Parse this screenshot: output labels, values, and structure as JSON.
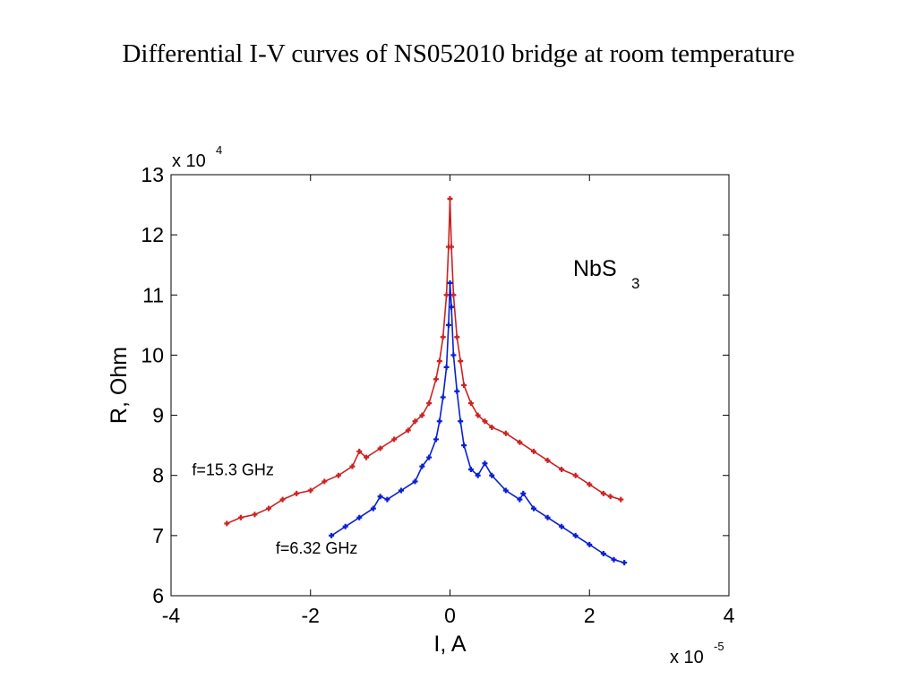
{
  "slide": {
    "title": "Differential I-V curves of NS052010 bridge at room temperature"
  },
  "colors": {
    "series1": "#cc2222",
    "series2": "#0a1fd2",
    "axis": "#000000",
    "background": "#ffffff"
  },
  "chart_data": {
    "type": "line",
    "xlabel": "I, A",
    "ylabel": "R, Ohm",
    "x_multiplier": "x 10",
    "x_multiplier_exp": "-5",
    "y_multiplier": "x 10",
    "y_multiplier_exp": "4",
    "xlim": [
      -4,
      4
    ],
    "ylim": [
      6,
      13
    ],
    "xticks": [
      "-4",
      "-2",
      "0",
      "2",
      "4"
    ],
    "yticks": [
      "6",
      "7",
      "8",
      "9",
      "10",
      "11",
      "12",
      "13"
    ],
    "grid": false,
    "annotation_main": "NbS",
    "annotation_main_sub": "3",
    "series": [
      {
        "name": "f=15.3 GHz",
        "color": "#cc2222",
        "points": [
          [
            -3.2,
            7.2
          ],
          [
            -3.0,
            7.3
          ],
          [
            -2.8,
            7.35
          ],
          [
            -2.6,
            7.45
          ],
          [
            -2.4,
            7.6
          ],
          [
            -2.2,
            7.7
          ],
          [
            -2.0,
            7.75
          ],
          [
            -1.8,
            7.9
          ],
          [
            -1.6,
            8.0
          ],
          [
            -1.4,
            8.15
          ],
          [
            -1.3,
            8.4
          ],
          [
            -1.2,
            8.3
          ],
          [
            -1.0,
            8.45
          ],
          [
            -0.8,
            8.6
          ],
          [
            -0.6,
            8.75
          ],
          [
            -0.5,
            8.9
          ],
          [
            -0.4,
            9.0
          ],
          [
            -0.3,
            9.2
          ],
          [
            -0.2,
            9.6
          ],
          [
            -0.15,
            9.9
          ],
          [
            -0.1,
            10.3
          ],
          [
            -0.05,
            11.0
          ],
          [
            -0.02,
            11.8
          ],
          [
            0.0,
            12.6
          ],
          [
            0.02,
            11.8
          ],
          [
            0.05,
            11.0
          ],
          [
            0.1,
            10.3
          ],
          [
            0.15,
            9.9
          ],
          [
            0.2,
            9.5
          ],
          [
            0.3,
            9.2
          ],
          [
            0.4,
            9.0
          ],
          [
            0.5,
            8.9
          ],
          [
            0.6,
            8.8
          ],
          [
            0.8,
            8.7
          ],
          [
            1.0,
            8.55
          ],
          [
            1.2,
            8.4
          ],
          [
            1.4,
            8.25
          ],
          [
            1.6,
            8.1
          ],
          [
            1.8,
            8.0
          ],
          [
            2.0,
            7.85
          ],
          [
            2.2,
            7.7
          ],
          [
            2.3,
            7.65
          ],
          [
            2.45,
            7.6
          ]
        ]
      },
      {
        "name": "f=6.32 GHz",
        "color": "#0a1fd2",
        "points": [
          [
            -1.7,
            7.0
          ],
          [
            -1.5,
            7.15
          ],
          [
            -1.3,
            7.3
          ],
          [
            -1.1,
            7.45
          ],
          [
            -1.0,
            7.65
          ],
          [
            -0.9,
            7.6
          ],
          [
            -0.7,
            7.75
          ],
          [
            -0.5,
            7.9
          ],
          [
            -0.4,
            8.15
          ],
          [
            -0.3,
            8.3
          ],
          [
            -0.2,
            8.6
          ],
          [
            -0.15,
            8.9
          ],
          [
            -0.1,
            9.3
          ],
          [
            -0.05,
            9.8
          ],
          [
            -0.02,
            10.5
          ],
          [
            0.0,
            11.2
          ],
          [
            0.02,
            10.8
          ],
          [
            0.05,
            10.0
          ],
          [
            0.1,
            9.4
          ],
          [
            0.15,
            8.9
          ],
          [
            0.2,
            8.5
          ],
          [
            0.3,
            8.1
          ],
          [
            0.4,
            8.0
          ],
          [
            0.5,
            8.2
          ],
          [
            0.6,
            8.0
          ],
          [
            0.8,
            7.75
          ],
          [
            1.0,
            7.6
          ],
          [
            1.05,
            7.7
          ],
          [
            1.2,
            7.45
          ],
          [
            1.4,
            7.3
          ],
          [
            1.6,
            7.15
          ],
          [
            1.8,
            7.0
          ],
          [
            2.0,
            6.85
          ],
          [
            2.2,
            6.7
          ],
          [
            2.35,
            6.6
          ],
          [
            2.5,
            6.55
          ]
        ]
      }
    ],
    "annotations": [
      {
        "text": "f=15.3 GHz",
        "x": -3.7,
        "y": 8.0
      },
      {
        "text": "f=6.32 GHz",
        "x": -2.5,
        "y": 6.7
      }
    ]
  }
}
